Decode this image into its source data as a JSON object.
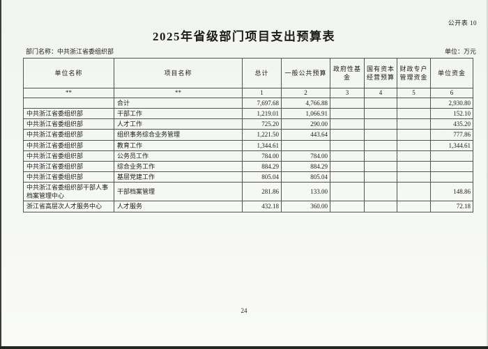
{
  "page": {
    "public_table_label": "公开表 10",
    "title": "2025年省级部门项目支出预算表",
    "department_label": "部门名称：",
    "department_name": "中共浙江省委组织部",
    "unit_label": "单位：万元",
    "page_number": "24"
  },
  "table": {
    "headers": [
      "单位名称",
      "项目名称",
      "总计",
      "一般公共预算",
      "政府性基金",
      "国有资本\n经营预算",
      "财政专户\n管理资金",
      "单位资金"
    ],
    "column_codes": [
      "**",
      "**",
      "1",
      "2",
      "3",
      "4",
      "5",
      "6"
    ],
    "column_keys": [
      "unit",
      "project",
      "total",
      "general_public_budget",
      "government_fund",
      "state_capital_budget",
      "fiscal_special_account",
      "unit_funds"
    ],
    "rows": [
      {
        "unit": "",
        "project": "合计",
        "total": "7,697.68",
        "general_public_budget": "4,766.88",
        "government_fund": "",
        "state_capital_budget": "",
        "fiscal_special_account": "",
        "unit_funds": "2,930.80"
      },
      {
        "unit": "中共浙江省委组织部",
        "project": "干部工作",
        "total": "1,219.01",
        "general_public_budget": "1,066.91",
        "government_fund": "",
        "state_capital_budget": "",
        "fiscal_special_account": "",
        "unit_funds": "152.10"
      },
      {
        "unit": "中共浙江省委组织部",
        "project": "人才工作",
        "total": "725.20",
        "general_public_budget": "290.00",
        "government_fund": "",
        "state_capital_budget": "",
        "fiscal_special_account": "",
        "unit_funds": "435.20"
      },
      {
        "unit": "中共浙江省委组织部",
        "project": "组织事务综合业务管理",
        "total": "1,221.50",
        "general_public_budget": "443.64",
        "government_fund": "",
        "state_capital_budget": "",
        "fiscal_special_account": "",
        "unit_funds": "777.86"
      },
      {
        "unit": "中共浙江省委组织部",
        "project": "教育工作",
        "total": "1,344.61",
        "general_public_budget": "",
        "government_fund": "",
        "state_capital_budget": "",
        "fiscal_special_account": "",
        "unit_funds": "1,344.61"
      },
      {
        "unit": "中共浙江省委组织部",
        "project": "公务员工作",
        "total": "784.00",
        "general_public_budget": "784.00",
        "government_fund": "",
        "state_capital_budget": "",
        "fiscal_special_account": "",
        "unit_funds": ""
      },
      {
        "unit": "中共浙江省委组织部",
        "project": "综合业务工作",
        "total": "884.29",
        "general_public_budget": "884.29",
        "government_fund": "",
        "state_capital_budget": "",
        "fiscal_special_account": "",
        "unit_funds": ""
      },
      {
        "unit": "中共浙江省委组织部",
        "project": "基层党建工作",
        "total": "805.04",
        "general_public_budget": "805.04",
        "government_fund": "",
        "state_capital_budget": "",
        "fiscal_special_account": "",
        "unit_funds": ""
      },
      {
        "unit": "中共浙江省委组织部干部人事档案管理中心",
        "project": "干部档案管理",
        "total": "281.86",
        "general_public_budget": "133.00",
        "government_fund": "",
        "state_capital_budget": "",
        "fiscal_special_account": "",
        "unit_funds": "148.86"
      },
      {
        "unit": "浙江省高层次人才服务中心",
        "project": "人才服务",
        "total": "432.18",
        "general_public_budget": "360.00",
        "government_fund": "",
        "state_capital_budget": "",
        "fiscal_special_account": "",
        "unit_funds": "72.18"
      }
    ]
  }
}
